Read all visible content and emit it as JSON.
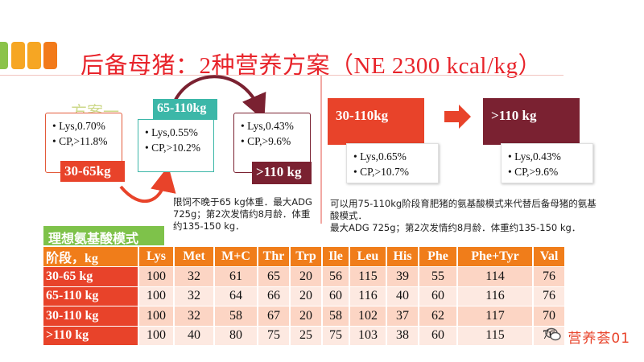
{
  "title": "后备母猪：2种营养方案（NE 2300 kcal/kg）",
  "colors": {
    "title_red": "#e8232a",
    "orange_red": "#e8432a",
    "teal": "#3cb7a8",
    "maroon": "#7a2131",
    "table_header_orange": "#f07d1a",
    "table_title_green": "#7ec24a"
  },
  "left_scheme": {
    "label": "方案一",
    "stage_a": {
      "stage": "30-65kg",
      "lys": "Lys,0.70%",
      "cp": "CP,>11.8%"
    },
    "stage_b": {
      "stage": "65-110kg",
      "lys": "Lys,0.55%",
      "cp": "CP,>10.2%"
    },
    "stage_c": {
      "stage": ">110 kg",
      "lys": "Lys,0.43%",
      "cp": "CP,>9.6%"
    },
    "note": "限饲不晚于65 kg体重．最大ADG 725g；第2次发情约8月龄．体重约135-150 kg．"
  },
  "right_scheme": {
    "stage_d": {
      "stage": "30-110kg",
      "lys": "Lys,0.65%",
      "cp": "CP,>10.7%"
    },
    "stage_e": {
      "stage": ">110 kg",
      "lys": "Lys,0.43%",
      "cp": "CP,>9.6%"
    },
    "note_line1": "可以用75-110kg阶段育肥猪的氨基酸模式来代替后备母猪的氨基酸模式．",
    "note_line2": "最大ADG 725g；第2次发情约8月龄．体重约135-150 kg．"
  },
  "table": {
    "title": "理想氨基酸模式",
    "headers": [
      "阶段，kg",
      "Lys",
      "Met",
      "M+C",
      "Thr",
      "Trp",
      "Ile",
      "Leu",
      "His",
      "Phe",
      "Phe+Tyr",
      "Val"
    ],
    "rows": [
      [
        "30-65 kg",
        "100",
        "32",
        "61",
        "65",
        "20",
        "56",
        "115",
        "39",
        "55",
        "114",
        "76"
      ],
      [
        "65-110 kg",
        "100",
        "32",
        "64",
        "66",
        "20",
        "60",
        "116",
        "40",
        "60",
        "116",
        "76"
      ],
      [
        "30-110 kg",
        "100",
        "32",
        "58",
        "67",
        "20",
        "58",
        "102",
        "37",
        "62",
        "117",
        "70"
      ],
      [
        ">110 kg",
        "100",
        "40",
        "80",
        "75",
        "25",
        "75",
        "103",
        "38",
        "60",
        "115",
        "76"
      ]
    ]
  },
  "watermark": {
    "icon": "wechat-icon",
    "text": "营养荟01"
  }
}
